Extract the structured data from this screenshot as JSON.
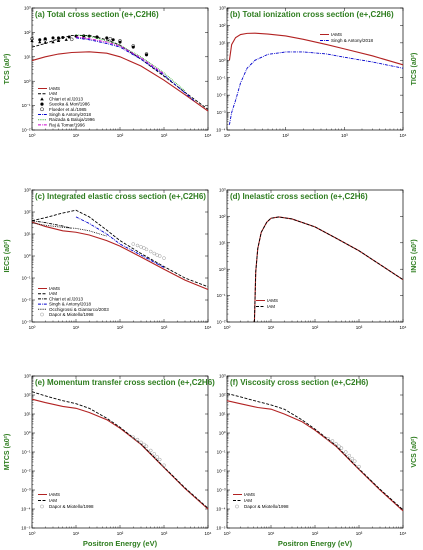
{
  "xlabel": "Positron Energy (eV)",
  "colors": {
    "title": "#2e7d1f",
    "red": "#b22222",
    "black": "#000000",
    "blue": "#0000cc",
    "green": "#22aa22",
    "magenta": "#cc00cc",
    "gray": "#999999"
  },
  "chart_data": [
    {
      "id": "a",
      "type": "line",
      "title": "(a) Total cross section (e+,C2H6)",
      "ylabel": "TCS (a0²)",
      "xlog": true,
      "ylog": true,
      "xlim": [
        1,
        10000
      ],
      "ylim": [
        0.01,
        1000
      ],
      "x_ticks": [
        "10⁰",
        "10¹",
        "10²",
        "10³",
        "10⁴"
      ],
      "y_ticks": [
        "10⁻²",
        "10⁻¹",
        "10⁰",
        "10¹",
        "10²",
        "10³"
      ],
      "series": [
        {
          "name": "IAMS",
          "style": "solid",
          "color": "#b22222",
          "x": [
            1,
            2,
            4,
            8,
            20,
            50,
            100,
            300,
            1000,
            3000,
            10000
          ],
          "y": [
            7,
            10,
            13,
            15,
            16,
            14,
            10,
            4.2,
            1.1,
            0.28,
            0.06
          ]
        },
        {
          "name": "IAM",
          "style": "dash",
          "color": "#000000",
          "x": [
            1,
            2,
            4,
            8,
            20,
            50,
            100,
            300,
            1000,
            3000,
            10000
          ],
          "y": [
            25,
            35,
            55,
            75,
            75,
            50,
            30,
            8,
            1.6,
            0.35,
            0.07
          ]
        },
        {
          "name": "Chiari et al./2013",
          "style": "markers",
          "marker": "tri",
          "color": "#000000",
          "x": [
            1,
            1.5,
            2,
            3,
            4,
            6
          ],
          "y": [
            45,
            40,
            38,
            40,
            45,
            50
          ]
        },
        {
          "name": "Sueoka & Mori/1986",
          "style": "markers",
          "marker": "circle-fill",
          "color": "#000000",
          "x": [
            1.5,
            2,
            3,
            4,
            5,
            7,
            10,
            15,
            20,
            30,
            50,
            70,
            100,
            200,
            400
          ],
          "y": [
            50,
            55,
            60,
            60,
            62,
            65,
            70,
            72,
            70,
            65,
            60,
            50,
            40,
            25,
            12
          ]
        },
        {
          "name": "Floeder et al./1985",
          "style": "markers",
          "marker": "circle-open",
          "color": "#000000",
          "x": [
            1,
            2,
            4,
            8,
            15,
            30,
            60,
            100,
            200,
            400
          ],
          "y": [
            55,
            50,
            48,
            52,
            60,
            64,
            55,
            45,
            28,
            13
          ]
        },
        {
          "name": "Singh & Antony/2018",
          "style": "dashdot",
          "color": "#0000cc",
          "x": [
            10,
            20,
            50,
            100,
            300,
            1000,
            5000
          ],
          "y": [
            60,
            50,
            35,
            25,
            8,
            1.8,
            0.15
          ]
        },
        {
          "name": "Raizada & Baluja/1996",
          "style": "dot",
          "color": "#22aa22",
          "x": [
            10,
            20,
            50,
            100,
            300,
            1000,
            3000
          ],
          "y": [
            80,
            70,
            45,
            30,
            10,
            2.2,
            0.4
          ]
        },
        {
          "name": "Raj & Tomar/1996",
          "style": "dashdot",
          "color": "#cc00cc",
          "x": [
            10,
            20,
            50,
            100,
            300,
            1000
          ],
          "y": [
            65,
            55,
            40,
            28,
            9,
            2
          ]
        }
      ]
    },
    {
      "id": "b",
      "type": "line",
      "title": "(b) Total ionization cross section (e+,C2H6)",
      "ylabel": "TICS (a0²)",
      "xlog": true,
      "ylog": true,
      "xlim": [
        10,
        10000
      ],
      "ylim": [
        0.0001,
        1000
      ],
      "x_ticks": [
        "10¹",
        "10²",
        "10³",
        "10⁴"
      ],
      "y_ticks": [
        "10⁻⁴",
        "10⁻³",
        "10⁻²",
        "10⁻¹",
        "10⁰",
        "10¹",
        "10²",
        "10³"
      ],
      "series": [
        {
          "name": "IAMS",
          "style": "solid",
          "color": "#b22222",
          "x": [
            11,
            12,
            14,
            17,
            22,
            30,
            50,
            100,
            200,
            500,
            1000,
            3000,
            10000
          ],
          "y": [
            1,
            8,
            20,
            30,
            35,
            36,
            32,
            25,
            16,
            8,
            4.5,
            1.8,
            0.55
          ]
        },
        {
          "name": "Singh & Antony/2018",
          "style": "dashdot",
          "color": "#0000cc",
          "x": [
            11,
            12,
            14,
            17,
            22,
            30,
            50,
            100,
            200,
            500,
            1000,
            3000,
            10000
          ],
          "y": [
            0.0002,
            0.001,
            0.005,
            0.05,
            0.35,
            1,
            2.2,
            3,
            3,
            2.3,
            1.5,
            0.8,
            0.35
          ]
        }
      ]
    },
    {
      "id": "c",
      "type": "line",
      "title": "(c) Integrated elastic cross section (e+,C2H6)",
      "ylabel": "IECS (a0²)",
      "xlog": true,
      "ylog": true,
      "xlim": [
        1,
        10000
      ],
      "ylim": [
        0.001,
        1000
      ],
      "x_ticks": [
        "10⁰",
        "10¹",
        "10²",
        "10³",
        "10⁴"
      ],
      "y_ticks": [
        "10⁻³",
        "10⁻²",
        "10⁻¹",
        "10⁰",
        "10¹",
        "10²",
        "10³"
      ],
      "series": [
        {
          "name": "IAMS",
          "style": "solid",
          "color": "#b22222",
          "x": [
            1,
            2,
            5,
            10,
            20,
            50,
            100,
            300,
            1000,
            3000,
            10000
          ],
          "y": [
            35,
            22,
            14,
            12,
            9,
            5,
            2.8,
            0.9,
            0.25,
            0.08,
            0.03
          ]
        },
        {
          "name": "IAM",
          "style": "dash",
          "color": "#000000",
          "x": [
            1,
            2,
            5,
            10,
            20,
            50,
            100,
            300,
            1000,
            3000,
            10000
          ],
          "y": [
            40,
            55,
            90,
            120,
            60,
            15,
            5,
            1.3,
            0.33,
            0.1,
            0.04
          ]
        },
        {
          "name": "Chiari et al./2013",
          "style": "dashdot",
          "color": "#000000",
          "x": [
            1,
            2,
            3,
            5,
            8
          ],
          "y": [
            40,
            33,
            28,
            23,
            18
          ]
        },
        {
          "name": "Singh & Antony/2018",
          "style": "dashdot",
          "color": "#0000cc",
          "x": [
            10,
            20,
            50,
            100,
            300,
            1000
          ],
          "y": [
            60,
            30,
            10,
            3.5,
            1.1,
            0.3
          ]
        },
        {
          "name": "Occhigrossi & Gianturco/2003",
          "style": "dot",
          "color": "#000000",
          "x": [
            1,
            2,
            5,
            10,
            20,
            50
          ],
          "y": [
            32,
            25,
            20,
            18,
            14,
            8
          ]
        },
        {
          "name": "Dapor & Miotello/1998",
          "style": "markers",
          "marker": "circle-open",
          "color": "#999999",
          "x": [
            200,
            250,
            300,
            350,
            400,
            500,
            600,
            700,
            800,
            1000
          ],
          "y": [
            3.5,
            3,
            2.6,
            2.3,
            2,
            1.6,
            1.3,
            1.1,
            1,
            0.8
          ]
        }
      ]
    },
    {
      "id": "d",
      "type": "line",
      "title": "(d) Inelastic cross section (e+,C2H6)",
      "ylabel": "INCS (a0²)",
      "xlog": true,
      "ylog": true,
      "xlim": [
        1,
        10000
      ],
      "ylim": [
        0.01,
        1000
      ],
      "x_ticks": [
        "10⁰",
        "10¹",
        "10²",
        "10³",
        "10⁴"
      ],
      "y_ticks": [
        "10⁻²",
        "10⁻¹",
        "10⁰",
        "10¹",
        "10²",
        "10³"
      ],
      "series": [
        {
          "name": "IAMS",
          "style": "solid",
          "color": "#b22222",
          "x": [
            4.2,
            4.5,
            5,
            6,
            8,
            10,
            15,
            30,
            100,
            300,
            1000,
            3000,
            10000
          ],
          "y": [
            0.01,
            0.8,
            6,
            25,
            60,
            85,
            95,
            80,
            40,
            15,
            5,
            1.5,
            0.4
          ]
        },
        {
          "name": "IAM",
          "style": "dash",
          "color": "#000000",
          "x": [
            4.2,
            4.5,
            5,
            6,
            8,
            10,
            15,
            30,
            100,
            300,
            1000,
            3000,
            10000
          ],
          "y": [
            0.01,
            0.8,
            6,
            25,
            60,
            85,
            95,
            80,
            40,
            15,
            5,
            1.5,
            0.4
          ]
        }
      ]
    },
    {
      "id": "e",
      "type": "line",
      "title": "(e) Momentum transfer cross section (e+,C2H6)",
      "ylabel": "MTCS (a0²)",
      "xlog": true,
      "ylog": true,
      "xlim": [
        1,
        10000
      ],
      "ylim": [
        1e-05,
        1000
      ],
      "x_ticks": [
        "10⁰",
        "10¹",
        "10²",
        "10³",
        "10⁴"
      ],
      "y_ticks": [
        "10⁻⁵",
        "10⁻⁴",
        "10⁻³",
        "10⁻²",
        "10⁻¹",
        "10⁰",
        "10¹",
        "10²",
        "10³"
      ],
      "series": [
        {
          "name": "IAMS",
          "style": "solid",
          "color": "#b22222",
          "x": [
            1,
            2,
            5,
            10,
            20,
            50,
            100,
            300,
            1000,
            3000,
            10000
          ],
          "y": [
            60,
            40,
            25,
            20,
            12,
            5,
            1.8,
            0.25,
            0.015,
            0.0012,
            0.0001
          ]
        },
        {
          "name": "IAM",
          "style": "dash",
          "color": "#000000",
          "x": [
            1,
            2,
            5,
            10,
            20,
            50,
            100,
            300,
            1000,
            3000,
            10000
          ],
          "y": [
            150,
            90,
            50,
            35,
            20,
            6,
            2,
            0.27,
            0.016,
            0.0013,
            0.00011
          ]
        },
        {
          "name": "Dapor & Miotello/1998",
          "style": "markers",
          "marker": "circle-open",
          "color": "#999999",
          "x": [
            200,
            250,
            300,
            350,
            400,
            500,
            600,
            700,
            800,
            1000
          ],
          "y": [
            0.6,
            0.45,
            0.32,
            0.25,
            0.2,
            0.12,
            0.08,
            0.055,
            0.04,
            0.02
          ]
        }
      ]
    },
    {
      "id": "f",
      "type": "line",
      "title": "(f) Viscosity cross section (e+,C2H6)",
      "ylabel": "VCS (a0²)",
      "xlog": true,
      "ylog": true,
      "xlim": [
        1,
        10000
      ],
      "ylim": [
        1e-05,
        1000
      ],
      "x_ticks": [
        "10⁰",
        "10¹",
        "10²",
        "10³",
        "10⁴"
      ],
      "y_ticks": [
        "10⁻⁵",
        "10⁻⁴",
        "10⁻³",
        "10⁻²",
        "10⁻¹",
        "10⁰",
        "10¹",
        "10²",
        "10³"
      ],
      "series": [
        {
          "name": "IAMS",
          "style": "solid",
          "color": "#b22222",
          "x": [
            1,
            2,
            5,
            10,
            20,
            50,
            100,
            300,
            1000,
            3000,
            10000
          ],
          "y": [
            50,
            35,
            22,
            18,
            10,
            4,
            1.4,
            0.2,
            0.012,
            0.001,
            8e-05
          ]
        },
        {
          "name": "IAM",
          "style": "dash",
          "color": "#000000",
          "x": [
            1,
            2,
            5,
            10,
            20,
            50,
            100,
            300,
            1000,
            3000,
            10000
          ],
          "y": [
            120,
            80,
            45,
            30,
            18,
            5,
            1.6,
            0.22,
            0.013,
            0.0011,
            9e-05
          ]
        },
        {
          "name": "Dapor & Miotello/1998",
          "style": "markers",
          "marker": "circle-open",
          "color": "#999999",
          "x": [
            200,
            250,
            300,
            350,
            400,
            500,
            600,
            700,
            800,
            1000
          ],
          "y": [
            0.5,
            0.38,
            0.27,
            0.2,
            0.16,
            0.1,
            0.065,
            0.045,
            0.033,
            0.017
          ]
        }
      ]
    }
  ]
}
